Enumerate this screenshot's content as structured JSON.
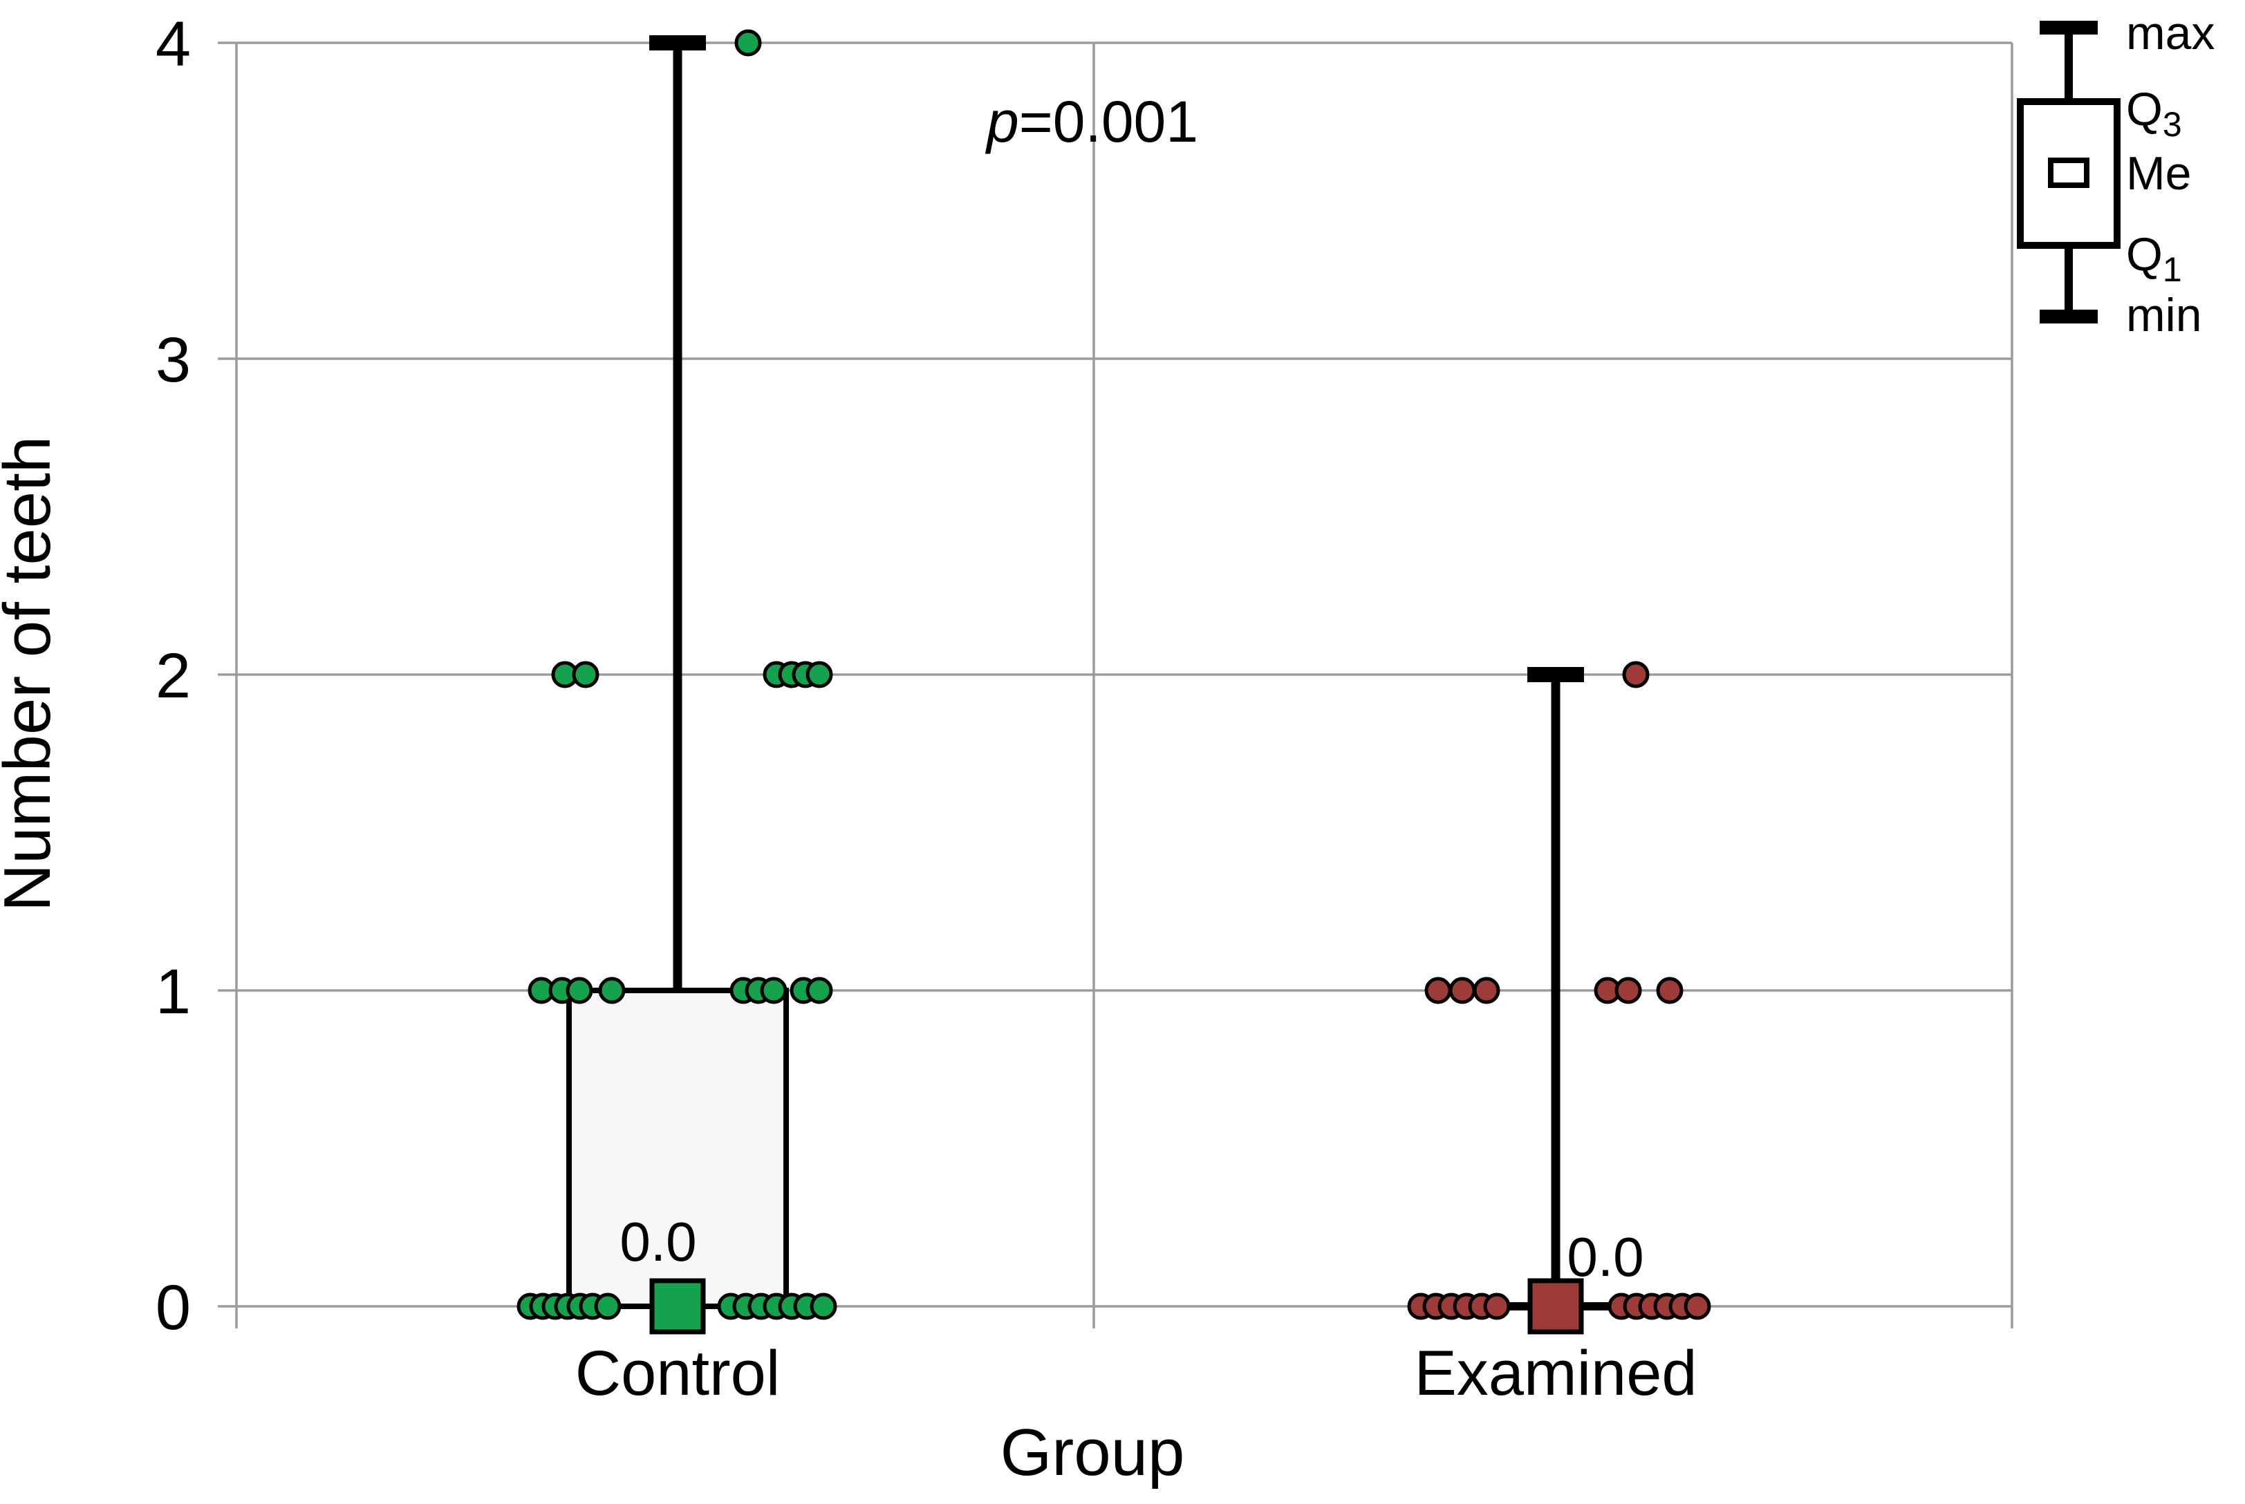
{
  "chart_data": {
    "type": "boxplot",
    "title": "",
    "xlabel": "Group",
    "ylabel": "Number of teeth",
    "annotation": "p=0.001",
    "ylim": [
      0,
      4
    ],
    "yticks": [
      "0",
      "1",
      "2",
      "3",
      "4"
    ],
    "grid": true,
    "legend_position": "top-right",
    "legend_labels": [
      "max",
      "Q3",
      "Me",
      "Q1",
      "min"
    ],
    "categories": [
      "Control",
      "Examined"
    ],
    "colors": {
      "control": "#14a24c",
      "examined": "#9d3b39",
      "box_fill": "#f7f7f7",
      "gridline": "#9b9b9b",
      "stroke": "#000000"
    },
    "series": [
      {
        "name": "Control",
        "color": "#14a24c",
        "stats": {
          "min": 0,
          "q1": 0,
          "median": 0,
          "q3": 1,
          "max": 4
        },
        "median_label": "0.0",
        "median_label_offset": [
          -28,
          -94
        ],
        "points": [
          {
            "value": 4,
            "offsets": [
              102
            ]
          },
          {
            "value": 2,
            "offsets": [
              -163,
              -133,
              143,
              165,
              185,
              205
            ]
          },
          {
            "value": 1,
            "offsets": [
              -197,
              -167,
              -142,
              -95,
              95,
              117,
              139,
              182,
              205
            ]
          },
          {
            "value": 0,
            "offsets": [
              -213,
              -195,
              -177,
              -159,
              -141,
              -123,
              -101,
              77,
              99,
              121,
              143,
              165,
              187,
              211
            ]
          }
        ]
      },
      {
        "name": "Examined",
        "color": "#9d3b39",
        "stats": {
          "min": 0,
          "q1": 0,
          "median": 0,
          "q3": 0,
          "max": 2
        },
        "median_label": "0.0",
        "median_label_offset": [
          72,
          -72
        ],
        "points": [
          {
            "value": 2,
            "offsets": [
              116
            ]
          },
          {
            "value": 1,
            "offsets": [
              -170,
              -135,
              -100,
              75,
              105,
              165
            ]
          },
          {
            "value": 0,
            "offsets": [
              -195,
              -173,
              -151,
              -129,
              -107,
              -85,
              95,
              117,
              139,
              161,
              183,
              205
            ]
          }
        ]
      }
    ]
  }
}
